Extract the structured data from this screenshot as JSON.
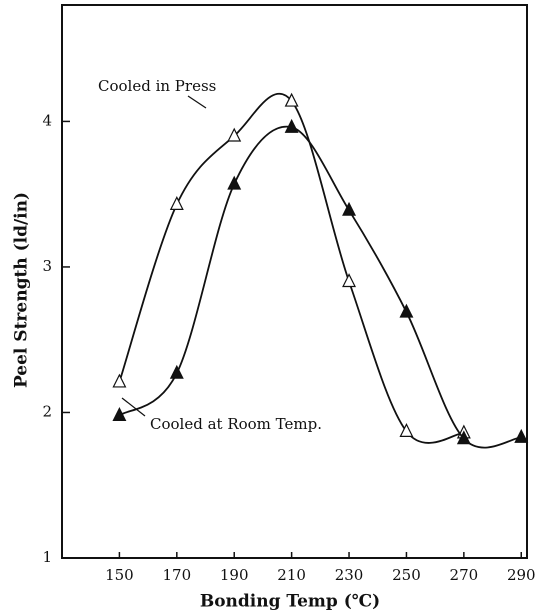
{
  "chart_data": {
    "type": "line",
    "x_label": "Bonding Temp (℃)",
    "y_label": "Peel Strength (ld/in)",
    "x": [
      150,
      170,
      190,
      210,
      230,
      250,
      270,
      290
    ],
    "series": [
      {
        "name": "Cooled in Press",
        "color": "#111111",
        "marker": "open-triangle",
        "values": [
          2.21,
          3.43,
          3.9,
          4.14,
          2.9,
          1.87,
          1.86,
          null
        ]
      },
      {
        "name": "Cooled at Room Temp.",
        "color": "#111111",
        "marker": "filled-triangle",
        "values": [
          1.98,
          2.27,
          3.57,
          3.96,
          3.39,
          2.69,
          1.82,
          1.83
        ]
      }
    ],
    "xlim": [
      130,
      292
    ],
    "ylim": [
      1,
      4.8
    ],
    "xticks": [
      150,
      170,
      190,
      210,
      230,
      250,
      270,
      290
    ],
    "yticks": [
      1,
      2,
      3,
      4
    ],
    "grid": false
  }
}
